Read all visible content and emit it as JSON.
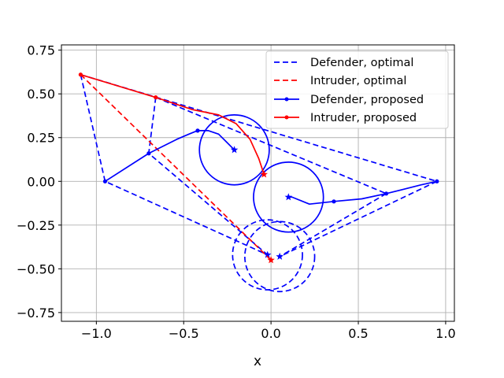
{
  "chart_data": {
    "type": "line",
    "title": "",
    "xlabel": "x",
    "ylabel": "",
    "xlim": [
      -1.2,
      1.05
    ],
    "ylim": [
      -0.8,
      0.78
    ],
    "xticks": [
      -1.0,
      -0.5,
      0.0,
      0.5,
      1.0
    ],
    "xtick_labels": [
      "−1.0",
      "−0.5",
      "0.0",
      "0.5",
      "1.0"
    ],
    "yticks": [
      -0.75,
      -0.5,
      -0.25,
      0.0,
      0.25,
      0.5,
      0.75
    ],
    "ytick_labels": [
      "−0.75",
      "−0.50",
      "−0.25",
      "0.00",
      "0.25",
      "0.50",
      "0.75"
    ],
    "grid": true,
    "legend_position": "top-right",
    "colors": {
      "defender": "#0000ff",
      "intruder": "#ff0000",
      "grid": "#b0b0b0"
    },
    "series": [
      {
        "name": "Defender, optimal",
        "color": "#0000ff",
        "style": "dashed",
        "lines": [
          {
            "x": [
              -1.09,
              -0.95,
              -0.02
            ],
            "y": [
              0.61,
              0.0,
              -0.42
            ]
          },
          {
            "x": [
              -0.66,
              -0.7,
              -0.02
            ],
            "y": [
              0.48,
              0.16,
              -0.42
            ]
          },
          {
            "x": [
              0.95,
              0.05
            ],
            "y": [
              0.0,
              -0.43
            ]
          },
          {
            "x": [
              0.66,
              0.05
            ],
            "y": [
              -0.07,
              -0.43
            ]
          },
          {
            "x": [
              -1.09,
              0.95
            ],
            "y": [
              0.61,
              0.0
            ]
          },
          {
            "x": [
              -0.66,
              0.66
            ],
            "y": [
              0.48,
              -0.07
            ]
          }
        ],
        "circles": [
          {
            "cx": 0.05,
            "cy": -0.43,
            "r": 0.2
          },
          {
            "cx": -0.02,
            "cy": -0.42,
            "r": 0.2
          }
        ],
        "markers": [
          {
            "x": -0.02,
            "y": -0.42,
            "shape": "star"
          },
          {
            "x": 0.05,
            "y": -0.43,
            "shape": "star"
          }
        ]
      },
      {
        "name": "Intruder, optimal",
        "color": "#ff0000",
        "style": "dashed",
        "lines": [
          {
            "x": [
              -1.09,
              0.0
            ],
            "y": [
              0.61,
              -0.45
            ]
          }
        ],
        "circles": [],
        "markers": [
          {
            "x": 0.0,
            "y": -0.45,
            "shape": "star"
          }
        ]
      },
      {
        "name": "Defender, proposed",
        "color": "#0000ff",
        "style": "solid",
        "lines": [
          {
            "x": [
              -0.95,
              -0.7,
              -0.62,
              -0.54,
              -0.47,
              -0.42,
              -0.36,
              -0.3,
              -0.25,
              -0.21
            ],
            "y": [
              0.0,
              0.16,
              0.2,
              0.24,
              0.27,
              0.29,
              0.29,
              0.27,
              0.22,
              0.18
            ]
          },
          {
            "x": [
              0.95,
              0.86,
              0.76,
              0.66,
              0.52,
              0.36,
              0.22,
              0.17,
              0.12,
              0.1
            ],
            "y": [
              0.0,
              -0.02,
              -0.045,
              -0.07,
              -0.1,
              -0.115,
              -0.13,
              -0.11,
              -0.09,
              -0.09
            ]
          }
        ],
        "circles": [
          {
            "cx": -0.21,
            "cy": 0.18,
            "r": 0.2
          },
          {
            "cx": 0.1,
            "cy": -0.09,
            "r": 0.2
          }
        ],
        "markers": [
          {
            "x": -0.7,
            "y": 0.16,
            "shape": "dot"
          },
          {
            "x": -0.42,
            "y": 0.29,
            "shape": "dot"
          },
          {
            "x": 0.36,
            "y": -0.115,
            "shape": "dot"
          },
          {
            "x": 0.66,
            "y": -0.07,
            "shape": "dot"
          },
          {
            "x": -0.95,
            "y": 0.0,
            "shape": "dot"
          },
          {
            "x": 0.95,
            "y": 0.0,
            "shape": "dot"
          },
          {
            "x": -0.21,
            "y": 0.18,
            "shape": "star"
          },
          {
            "x": 0.1,
            "y": -0.09,
            "shape": "star"
          }
        ]
      },
      {
        "name": "Intruder, proposed",
        "color": "#ff0000",
        "style": "solid",
        "lines": [
          {
            "x": [
              -1.09,
              -0.66,
              -0.45,
              -0.3,
              -0.2,
              -0.12,
              -0.07,
              -0.04
            ],
            "y": [
              0.61,
              0.48,
              0.41,
              0.38,
              0.33,
              0.24,
              0.13,
              0.04
            ]
          }
        ],
        "circles": [],
        "markers": [
          {
            "x": -1.09,
            "y": 0.61,
            "shape": "dot"
          },
          {
            "x": -0.66,
            "y": 0.48,
            "shape": "dot"
          },
          {
            "x": -0.04,
            "y": 0.04,
            "shape": "star"
          }
        ]
      }
    ]
  }
}
